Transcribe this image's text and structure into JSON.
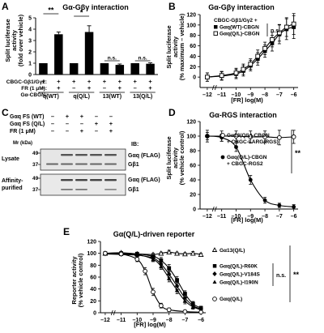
{
  "panels": {
    "A": {
      "letter": "A",
      "title": "Gα-Gβγ interaction",
      "ylabel_lines": [
        "Split luciferase",
        "activity",
        "(fold over vehicle)"
      ],
      "yticks": [
        "0",
        "1",
        "2",
        "3",
        "4",
        "5"
      ],
      "row_labels": [
        "CBGC-Gβ1/Gγ2:",
        "FR (1 μM):",
        "Gα-CBGN:"
      ],
      "signs": [
        "+",
        "+",
        "+",
        "+",
        "+",
        "+",
        "+",
        "+"
      ],
      "fr_signs": [
        "–",
        "+",
        "–",
        "+",
        "–",
        "+",
        "–",
        "+"
      ],
      "groups": [
        "q(WT)",
        "q(Q/L)",
        "13(WT)",
        "13(Q/L)"
      ],
      "sig": [
        "**",
        "*",
        "n.s.",
        "n.s."
      ]
    },
    "B": {
      "letter": "B",
      "title": "Gα-Gβγ interaction",
      "ylabel_lines": [
        "Split luciferase",
        "activity",
        "(% maximum – vehicle)"
      ],
      "xlabel": "[FR] log(M)",
      "yticks": [
        "0",
        "20",
        "40",
        "60",
        "80",
        "100",
        "120"
      ],
      "xticks": [
        "–12",
        "–11",
        "–10",
        "–9",
        "–8",
        "–7",
        "–6"
      ],
      "legend_header": "CBGC-Gβ1/Gγ2 +",
      "legend": [
        "Gαq(WT)-CBGN",
        "Gαq(Q/L)-CBGN"
      ],
      "sig": "n.s."
    },
    "C": {
      "letter": "C",
      "rows": [
        "Gαq FS (WT)",
        "Gαq FS (Q/L)",
        "FR (1 μM)"
      ],
      "signs": [
        [
          "–",
          "+",
          "+",
          "–",
          "–"
        ],
        [
          "–",
          "–",
          "–",
          "+",
          "+"
        ],
        [
          "–",
          "–",
          "+",
          "–",
          "+"
        ]
      ],
      "mr": "Mr (kDa)",
      "ib": "IB:",
      "lysate": "Lysate",
      "affinity": [
        "Affinity-",
        "purified"
      ],
      "markers": [
        "49",
        "37",
        "49",
        "37"
      ],
      "band_labels": [
        "Gαq (FLAG)",
        "Gβ1",
        "Gαq (FLAG)",
        "Gβ1"
      ]
    },
    "D": {
      "letter": "D",
      "title": "Gα-RGS interaction",
      "ylabel_lines": [
        "Split luciferase",
        "activity",
        "(% vehicle control)"
      ],
      "xlabel": "[FR] log(M)",
      "yticks": [
        "0",
        "20",
        "40",
        "60",
        "80",
        "100",
        "120"
      ],
      "xticks": [
        "–12",
        "–11",
        "–10",
        "–9",
        "–8",
        "–7",
        "–6"
      ],
      "legend": [
        [
          "Gα13(Q/L)-CBGN",
          "+ CBGC-LARG(RGS)"
        ],
        [
          "Gαq(Q/L)-CBGN",
          "+ CBGC-RGS2"
        ]
      ],
      "sig": "**"
    },
    "E": {
      "letter": "E",
      "title": "Gα(Q/L)-driven reporter",
      "ylabel_lines": [
        "Reporter activity",
        "(% vehicle control)"
      ],
      "xlabel": "[FR] log(M)",
      "yticks": [
        "0",
        "20",
        "40",
        "60",
        "80",
        "100",
        "120"
      ],
      "xticks": [
        "–12",
        "–11",
        "–10",
        "–9",
        "–8",
        "–7",
        "–6"
      ],
      "legend": [
        "Gα13(Q/L)",
        "Gαq(Q/L)-R60K",
        "Gαq(Q/L)-V184S",
        "Gαq(Q/L)-I190N",
        "Gαq(Q/L)"
      ],
      "sig_ns": "n.s.",
      "sig_star": "**"
    }
  },
  "chart_data": [
    {
      "panel": "A",
      "type": "bar",
      "categories": [
        "q(WT) –FR",
        "q(WT) +FR",
        "q(Q/L) –FR",
        "q(Q/L) +FR",
        "13(WT) –FR",
        "13(WT) +FR",
        "13(Q/L) –FR",
        "13(Q/L) +FR"
      ],
      "values": [
        1.0,
        3.55,
        1.0,
        3.75,
        1.0,
        0.85,
        1.0,
        0.95
      ],
      "errors": [
        0,
        0.2,
        0,
        0.55,
        0,
        0.08,
        0,
        0.08
      ],
      "ylim": [
        0,
        5
      ]
    },
    {
      "panel": "B",
      "type": "line",
      "xlim": [
        -12.5,
        -5.7
      ],
      "ylim": [
        -20,
        120
      ],
      "series": [
        {
          "name": "Gαq(WT)-CBGN",
          "marker": "filled-square",
          "x": [
            -12,
            -11,
            -10,
            -9.5,
            -9,
            -8.5,
            -8,
            -7.5,
            -7,
            -6.5,
            -6
          ],
          "y": [
            0,
            2,
            6,
            12,
            22,
            35,
            50,
            65,
            82,
            92,
            96
          ],
          "err": [
            8,
            8,
            9,
            10,
            10,
            12,
            12,
            15,
            18,
            20,
            22
          ]
        },
        {
          "name": "Gαq(Q/L)-CBGN",
          "marker": "open-square",
          "x": [
            -12,
            -11,
            -10,
            -9.5,
            -9,
            -8.5,
            -8,
            -7.5,
            -7,
            -6.5,
            -6
          ],
          "y": [
            0,
            3,
            8,
            15,
            25,
            40,
            55,
            72,
            85,
            96,
            102
          ],
          "err": [
            8,
            8,
            9,
            10,
            10,
            12,
            12,
            14,
            16,
            18,
            20
          ]
        }
      ]
    },
    {
      "panel": "D",
      "type": "line",
      "xlim": [
        -12.5,
        -5.7
      ],
      "ylim": [
        0,
        120
      ],
      "series": [
        {
          "name": "Gα13(Q/L)-CBGN + CBGC-LARG(RGS)",
          "marker": "open-circle",
          "x": [
            -12,
            -11,
            -10,
            -9,
            -8,
            -7,
            -6
          ],
          "y": [
            100,
            100,
            100,
            99,
            99,
            98,
            99
          ],
          "err": [
            8,
            7,
            7,
            8,
            8,
            10,
            9
          ]
        },
        {
          "name": "Gαq(Q/L)-CBGN + CBGC-RGS2",
          "marker": "filled-circle",
          "x": [
            -12,
            -11,
            -10,
            -9,
            -8,
            -7,
            -6
          ],
          "y": [
            100,
            98,
            85,
            40,
            12,
            5,
            3
          ],
          "err": [
            5,
            5,
            6,
            6,
            4,
            3,
            3
          ]
        }
      ]
    },
    {
      "panel": "E",
      "type": "line",
      "xlim": [
        -12.3,
        -5.7
      ],
      "ylim": [
        0,
        120
      ],
      "series": [
        {
          "name": "Gα13(Q/L)",
          "marker": "open-triangle",
          "x": [
            -12,
            -11,
            -10,
            -9,
            -8.5,
            -8,
            -7.5,
            -7,
            -6.5,
            -6
          ],
          "y": [
            100,
            101,
            99,
            98,
            100,
            102,
            100,
            99,
            100,
            98
          ],
          "err": [
            2,
            2,
            2,
            2,
            2,
            3,
            2,
            2,
            3,
            2
          ]
        },
        {
          "name": "Gαq(Q/L)-R60K",
          "marker": "filled-square",
          "x": [
            -12,
            -11,
            -10,
            -9,
            -8.5,
            -8,
            -7.5,
            -7,
            -6.5,
            -6
          ],
          "y": [
            100,
            100,
            99,
            95,
            88,
            75,
            55,
            32,
            15,
            8
          ],
          "err": [
            2,
            2,
            3,
            3,
            5,
            6,
            6,
            5,
            4,
            3
          ]
        },
        {
          "name": "Gαq(Q/L)-V184S",
          "marker": "filled-diamond",
          "x": [
            -12,
            -11,
            -10,
            -9,
            -8.5,
            -8,
            -7.5,
            -7,
            -6.5,
            -6
          ],
          "y": [
            99,
            98,
            97,
            92,
            82,
            65,
            45,
            25,
            12,
            6
          ],
          "err": [
            2,
            2,
            3,
            4,
            5,
            6,
            6,
            5,
            4,
            3
          ]
        },
        {
          "name": "Gαq(Q/L)-I190N",
          "marker": "filled-triangle",
          "x": [
            -12,
            -11,
            -10,
            -9,
            -8.5,
            -8,
            -7.5,
            -7,
            -6.5,
            -6
          ],
          "y": [
            100,
            99,
            98,
            90,
            78,
            58,
            38,
            20,
            10,
            5
          ],
          "err": [
            2,
            2,
            3,
            4,
            5,
            6,
            6,
            5,
            4,
            3
          ]
        },
        {
          "name": "Gαq(Q/L)",
          "marker": "open-circle",
          "x": [
            -12,
            -11,
            -10,
            -9.5,
            -9,
            -8.5,
            -8,
            -7,
            -6
          ],
          "y": [
            100,
            99,
            90,
            70,
            35,
            12,
            5,
            2,
            1
          ],
          "err": [
            2,
            2,
            4,
            6,
            6,
            4,
            3,
            2,
            2
          ]
        }
      ]
    }
  ]
}
